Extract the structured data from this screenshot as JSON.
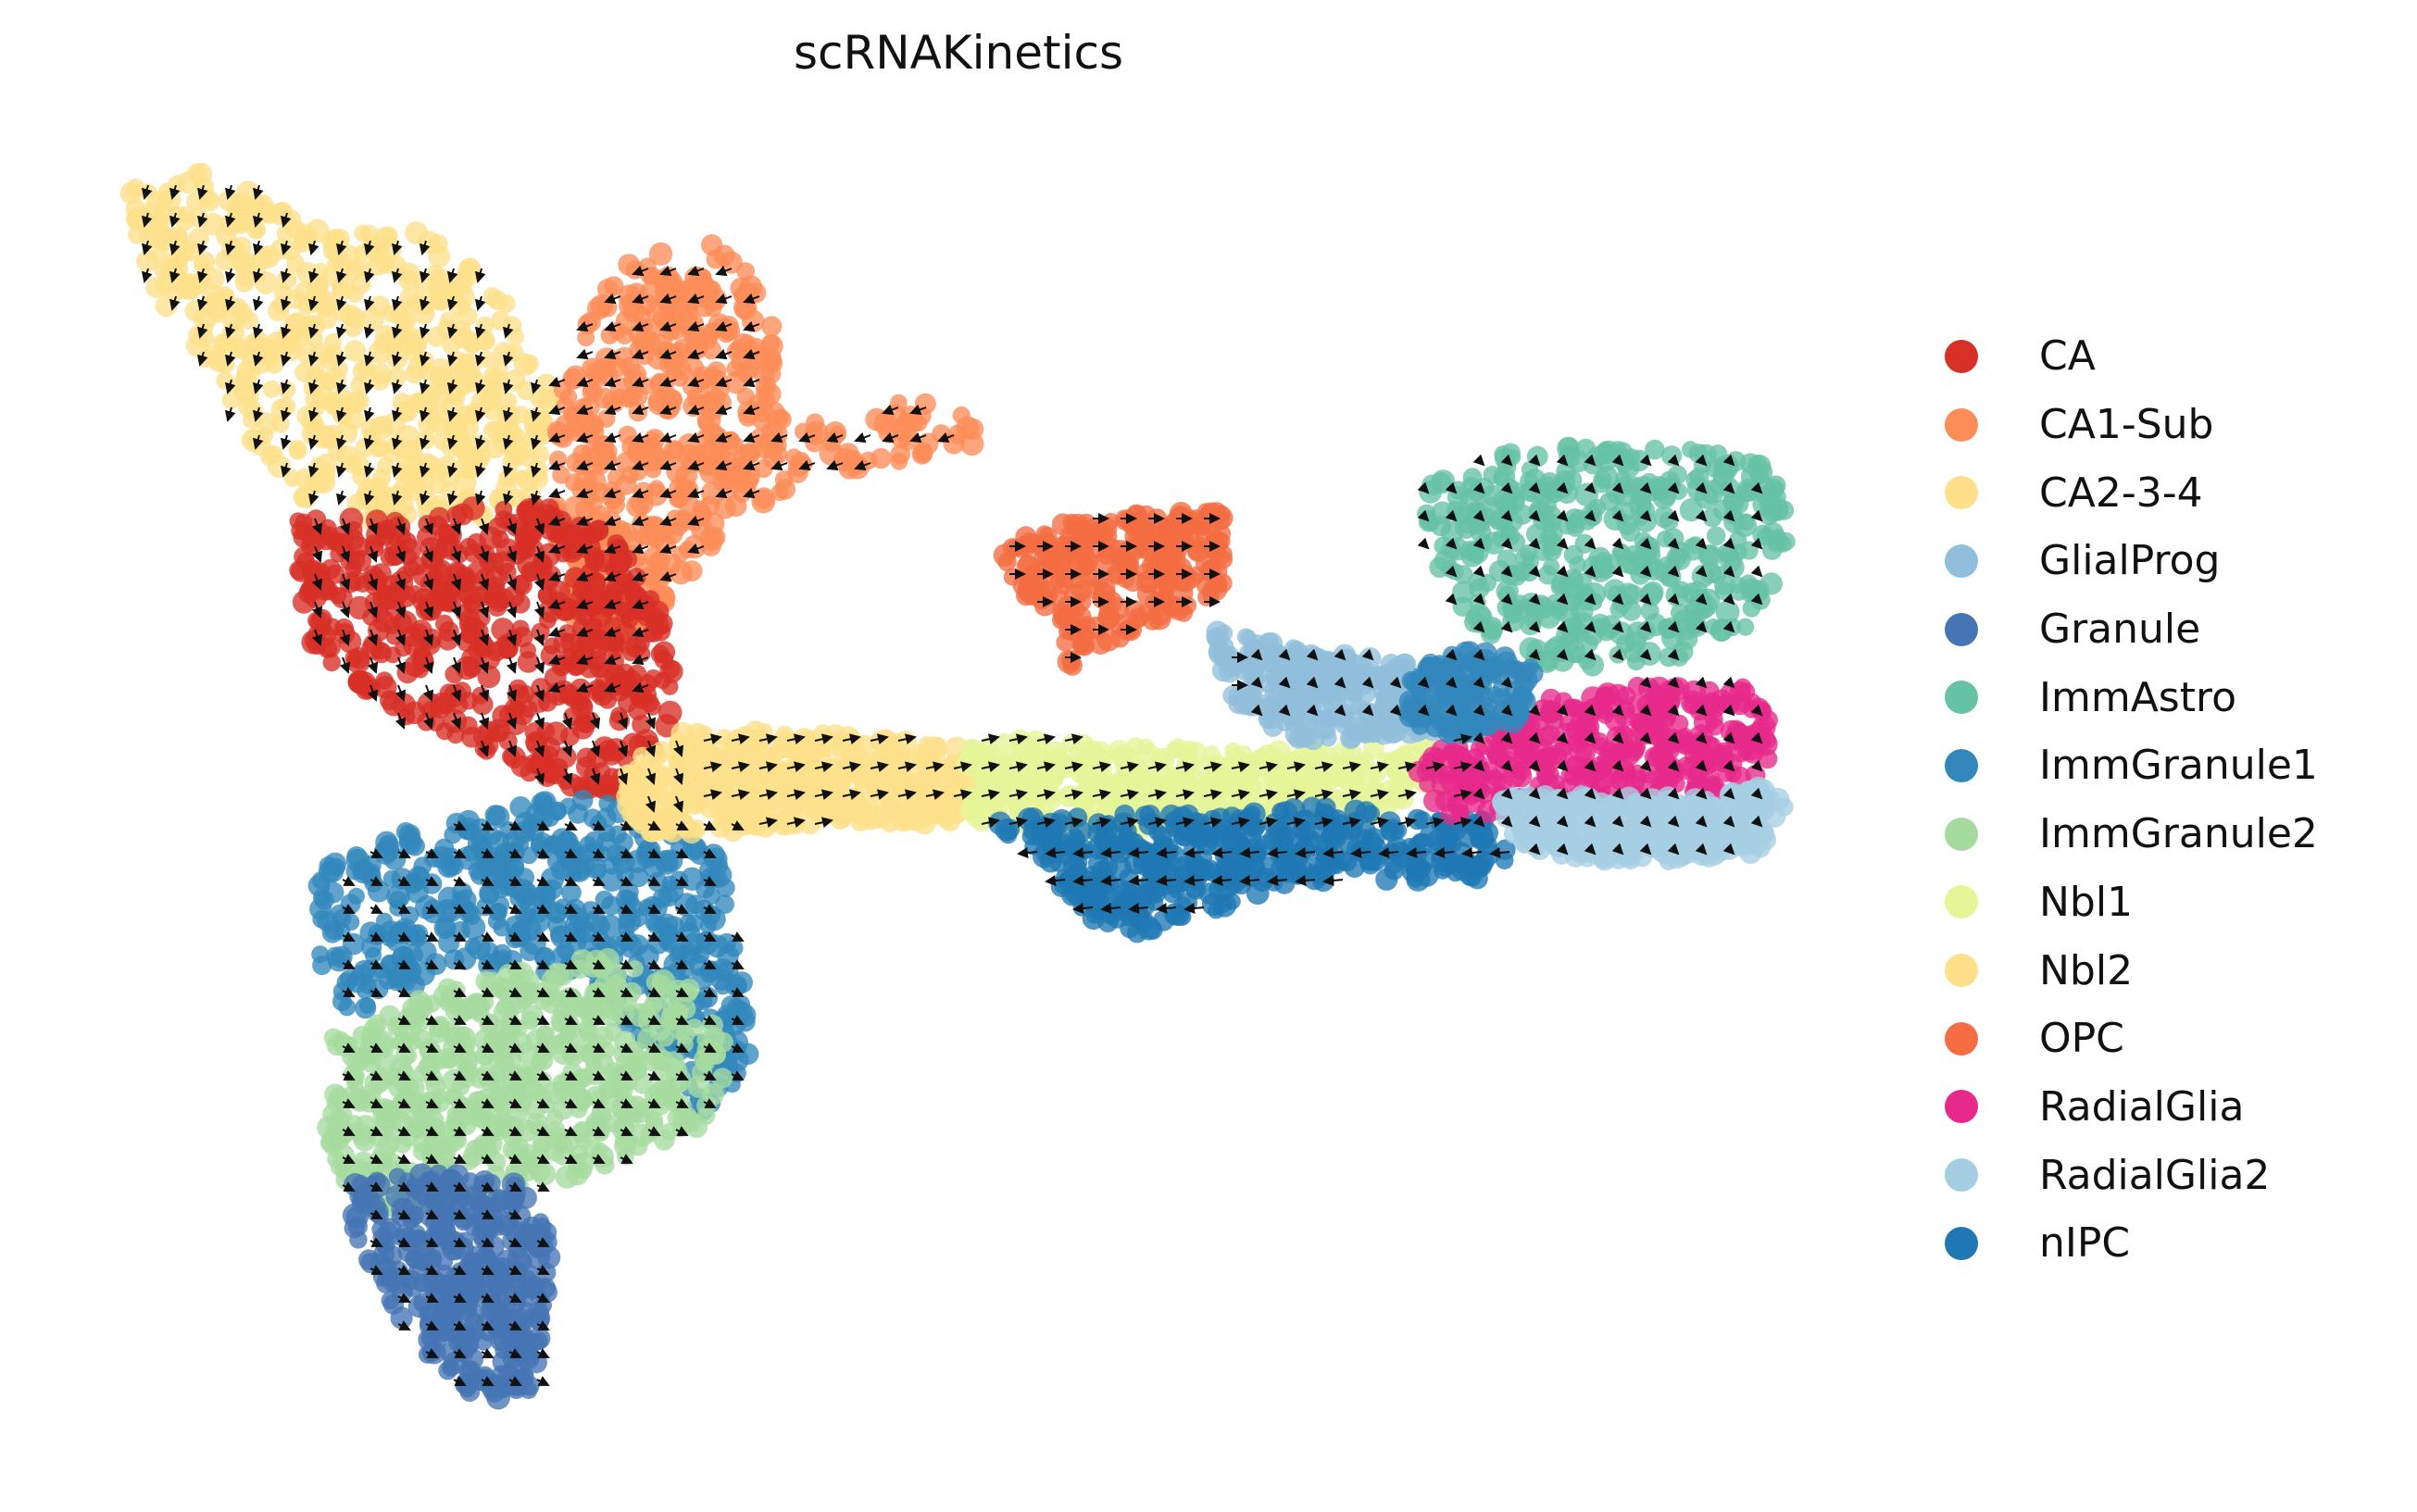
{
  "chart_data": {
    "type": "scatter",
    "title": "scRNAKinetics",
    "xlabel": "",
    "ylabel": "",
    "axes_visible": false,
    "grid": false,
    "overlay": "velocity vector field (arrows)",
    "legend_position": "right",
    "series": [
      {
        "name": "CA",
        "color": "#d73027"
      },
      {
        "name": "CA1-Sub",
        "color": "#fc8d59"
      },
      {
        "name": "CA2-3-4",
        "color": "#fee08b"
      },
      {
        "name": "GlialProg",
        "color": "#91bfdb"
      },
      {
        "name": "Granule",
        "color": "#4575b4"
      },
      {
        "name": "ImmAstro",
        "color": "#66c2a5"
      },
      {
        "name": "ImmGranule1",
        "color": "#3288bd"
      },
      {
        "name": "ImmGranule2",
        "color": "#a6dba0"
      },
      {
        "name": "Nbl1",
        "color": "#e6f598"
      },
      {
        "name": "Nbl2",
        "color": "#fee08b"
      },
      {
        "name": "OPC",
        "color": "#f46d43"
      },
      {
        "name": "RadialGlia",
        "color": "#e7298a"
      },
      {
        "name": "RadialGlia2",
        "color": "#a6cee3"
      },
      {
        "name": "nIPC",
        "color": "#1f78b4"
      }
    ]
  }
}
